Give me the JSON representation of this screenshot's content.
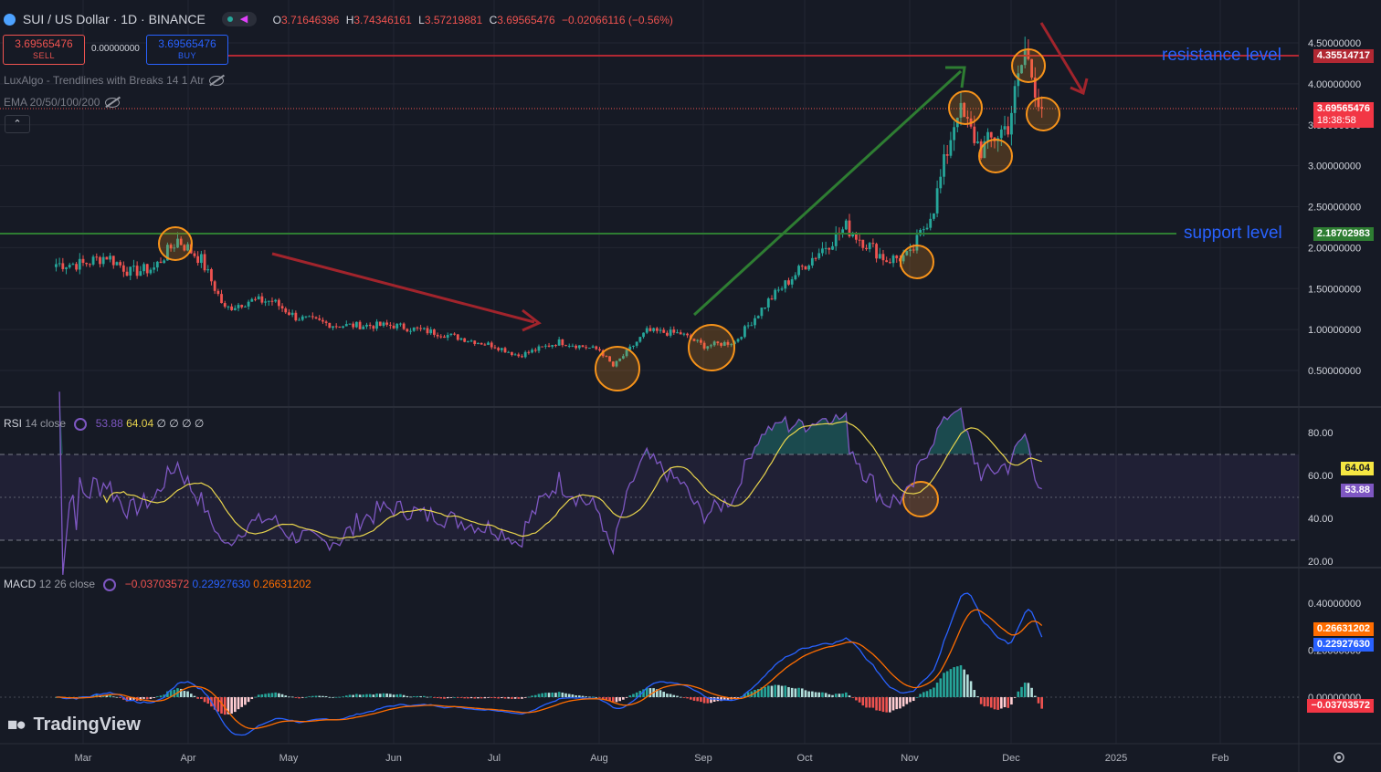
{
  "header": {
    "symbol_title": "SUI / US Dollar · 1D · BINANCE",
    "ohlc": {
      "o_label": "O",
      "o": "3.71646396",
      "h_label": "H",
      "h": "3.74346161",
      "l_label": "L",
      "l": "3.57219881",
      "c_label": "C",
      "c": "3.69565476",
      "change": "−0.02066116 (−0.56%)"
    }
  },
  "trade": {
    "sell_price": "3.69565476",
    "sell_label": "SELL",
    "spread": "0.00000000",
    "buy_price": "3.69565476",
    "buy_label": "BUY"
  },
  "indicators": {
    "luxalgo": "LuxAlgo - Trendlines with Breaks 14 1 Atr",
    "ema": "EMA 20/50/100/200"
  },
  "annotations": {
    "resistance": "resistance level",
    "support": "support level"
  },
  "price_axis": {
    "ticks": [
      "4.50000000",
      "4.00000000",
      "3.50000000",
      "3.00000000",
      "2.50000000",
      "2.00000000",
      "1.50000000",
      "1.00000000",
      "0.50000000"
    ],
    "tag_resistance": "4.35514717",
    "tag_last": "3.69565476",
    "tag_countdown": "18:38:58",
    "tag_support": "2.18702983"
  },
  "rsi": {
    "title": "RSI",
    "params": "14 close",
    "value": "53.88",
    "ma_value": "64.04",
    "extra": "∅ ∅ ∅ ∅",
    "ticks": [
      "80.00",
      "60.00",
      "40.00",
      "20.00"
    ],
    "tag_ma": "64.04",
    "tag_value": "53.88"
  },
  "macd": {
    "title": "MACD",
    "params": "12 26 close",
    "hist": "−0.03703572",
    "macd": "0.22927630",
    "signal": "0.26631202",
    "ticks": [
      "0.40000000",
      "0.20000000",
      "0.00000000"
    ],
    "tag_signal": "0.26631202",
    "tag_macd": "0.22927630",
    "tag_hist": "−0.03703572"
  },
  "time_axis": {
    "labels": [
      "Mar",
      "Apr",
      "May",
      "Jun",
      "Jul",
      "Aug",
      "Sep",
      "Oct",
      "Nov",
      "Dec",
      "2025",
      "Feb"
    ]
  },
  "branding": {
    "logo_text": "TradingView"
  },
  "colors": {
    "background": "#161a25",
    "up": "#26a69a",
    "down": "#ef5350",
    "resistance_line": "#b22833",
    "support_line": "#2e7d32",
    "annotation_text": "#2962ff",
    "rsi_line": "#7e57c2",
    "rsi_ma": "#e8d44d",
    "macd_line": "#2962ff",
    "signal_line": "#ff6d00",
    "circle_marker": "#f7931a"
  },
  "chart_data": {
    "type": "candlestick",
    "symbol": "SUI / US Dollar · 1D · BINANCE",
    "x_range": [
      "Feb 2024",
      "Feb 2025"
    ],
    "price_range": [
      0.2,
      4.7
    ],
    "closes": [
      {
        "date": "2024-03-01",
        "close": 1.8
      },
      {
        "date": "2024-03-08",
        "close": 1.9
      },
      {
        "date": "2024-03-15",
        "close": 1.7
      },
      {
        "date": "2024-03-22",
        "close": 1.75
      },
      {
        "date": "2024-03-29",
        "close": 2.1
      },
      {
        "date": "2024-04-05",
        "close": 1.85
      },
      {
        "date": "2024-04-12",
        "close": 1.25
      },
      {
        "date": "2024-04-19",
        "close": 1.35
      },
      {
        "date": "2024-04-26",
        "close": 1.35
      },
      {
        "date": "2024-05-03",
        "close": 1.15
      },
      {
        "date": "2024-05-15",
        "close": 1.05
      },
      {
        "date": "2024-06-01",
        "close": 1.05
      },
      {
        "date": "2024-06-15",
        "close": 0.95
      },
      {
        "date": "2024-07-01",
        "close": 0.8
      },
      {
        "date": "2024-07-08",
        "close": 0.68
      },
      {
        "date": "2024-07-20",
        "close": 0.85
      },
      {
        "date": "2024-08-01",
        "close": 0.75
      },
      {
        "date": "2024-08-05",
        "close": 0.55
      },
      {
        "date": "2024-08-15",
        "close": 0.98
      },
      {
        "date": "2024-08-25",
        "close": 0.95
      },
      {
        "date": "2024-09-01",
        "close": 0.8
      },
      {
        "date": "2024-09-10",
        "close": 0.85
      },
      {
        "date": "2024-09-20",
        "close": 1.35
      },
      {
        "date": "2024-10-01",
        "close": 1.8
      },
      {
        "date": "2024-10-13",
        "close": 2.25
      },
      {
        "date": "2024-10-25",
        "close": 1.85
      },
      {
        "date": "2024-11-01",
        "close": 1.9
      },
      {
        "date": "2024-11-08",
        "close": 2.5
      },
      {
        "date": "2024-11-15",
        "close": 3.7
      },
      {
        "date": "2024-11-22",
        "close": 3.2
      },
      {
        "date": "2024-11-30",
        "close": 3.5
      },
      {
        "date": "2024-12-05",
        "close": 4.4
      },
      {
        "date": "2024-12-10",
        "close": 3.7
      }
    ],
    "resistance_level": 4.35514717,
    "support_level": 2.18702983,
    "last_price": 3.69565476,
    "rsi": {
      "period": 14,
      "value": 53.88,
      "ma": 64.04,
      "range": [
        20,
        90
      ]
    },
    "macd": {
      "fast": 12,
      "slow": 26,
      "macd": 0.2292763,
      "signal": 0.26631202,
      "histogram": -0.03703572
    }
  }
}
